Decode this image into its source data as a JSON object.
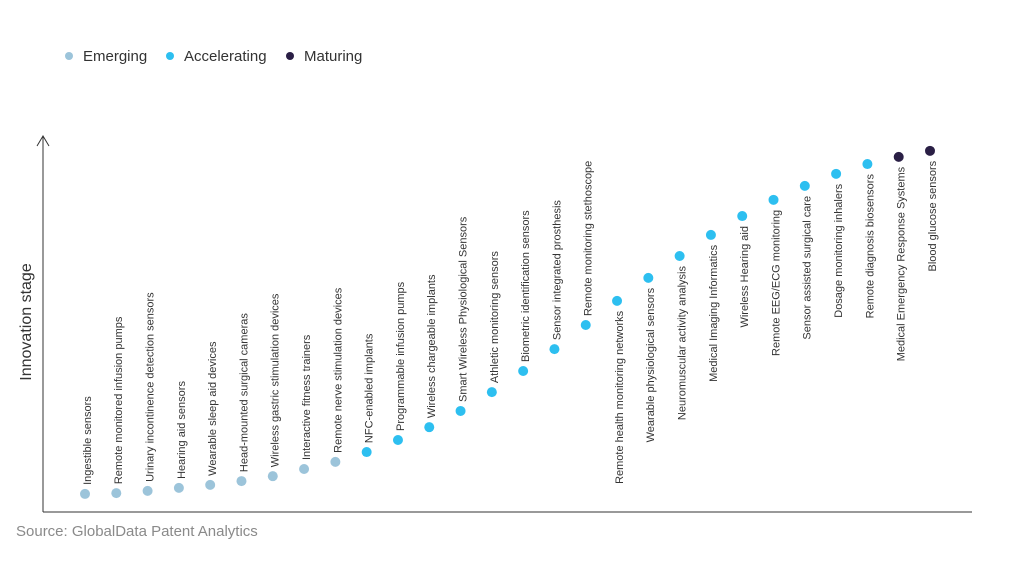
{
  "chart_data": {
    "type": "scatter",
    "y_label": "Innovation stage",
    "source": "Source: GlobalData Patent Analytics",
    "ylim": [
      0,
      100
    ],
    "series": [
      {
        "name": "Emerging",
        "color": "#9cc4da",
        "categories": [
          "Ingestible sensors",
          "Remote monitored infusion pumps",
          "Urinary incontinence detection sensors",
          "Hearing aid sensors",
          "Wearable sleep aid devices",
          "Head-mounted surgical cameras",
          "Wireless gastric stimulation devices",
          "Interactive fitness trainers",
          "Remote nerve stimulation devices"
        ],
        "values": [
          4.8,
          5.0,
          5.6,
          6.4,
          7.2,
          8.2,
          9.5,
          11.4,
          13.3
        ]
      },
      {
        "name": "Accelerating",
        "color": "#2dbff0",
        "categories": [
          "NFC-enabled implants",
          "Programmable infusion pumps",
          "Wireless chargeable implants",
          "Smart Wireless Physiological Sensors",
          "Athletic monitoring sensors",
          "Biometric identification sensors",
          "Sensor integrated prosthesis",
          "Remote monitoring stethoscope",
          "Remote health monitoring networks",
          "Wearable physiological sensors",
          "Neuromuscular activity analysis",
          "Medical Imaging Informatics",
          "Wireless Hearing aid",
          "Remote EEG/ECG monitoring",
          "Sensor assisted surgical care",
          "Dosage monitoring inhalers",
          "Remote diagnosis biosensors"
        ],
        "values": [
          15.9,
          19.1,
          22.5,
          26.8,
          31.8,
          37.4,
          43.2,
          49.6,
          56.0,
          62.1,
          67.9,
          73.5,
          78.5,
          82.8,
          86.5,
          89.7,
          92.3
        ]
      },
      {
        "name": "Maturing",
        "color": "#2a1f45",
        "categories": [
          "Medical Emergency Response Systems",
          "Blood glucose sensors"
        ],
        "values": [
          94.2,
          95.8
        ]
      }
    ]
  }
}
